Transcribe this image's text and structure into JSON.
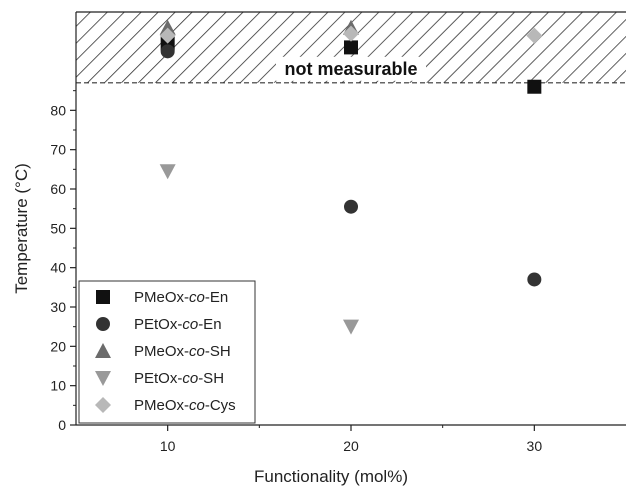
{
  "chart_data": {
    "type": "scatter",
    "xlabel": "Functionality (mol%)",
    "ylabel": "Temperature (°C)",
    "xlim": [
      5,
      35
    ],
    "ylim": [
      0,
      105
    ],
    "xticks": [
      10,
      20,
      30
    ],
    "yticks": [
      0,
      10,
      20,
      30,
      40,
      50,
      60,
      70,
      80
    ],
    "grid": false,
    "legend_position": "bottom-left",
    "annotation": "not measurable",
    "hatched_region": {
      "y_from": 87,
      "y_to": 105
    },
    "series": [
      {
        "name": "PMeOx-co-En",
        "name_main": "PMeOx-",
        "name_italic": "co",
        "name_tail": "-En",
        "marker": "square",
        "color": "#111111",
        "points": [
          {
            "x": 10,
            "y": 97
          },
          {
            "x": 20,
            "y": 96
          },
          {
            "x": 30,
            "y": 86
          }
        ]
      },
      {
        "name": "PEtOx-co-En",
        "name_main": "PEtOx-",
        "name_italic": "co",
        "name_tail": "-En",
        "marker": "circle",
        "color": "#333333",
        "points": [
          {
            "x": 10,
            "y": 95
          },
          {
            "x": 20,
            "y": 55.5
          },
          {
            "x": 30,
            "y": 37
          }
        ]
      },
      {
        "name": "PMeOx-co-SH",
        "name_main": "PMeOx-",
        "name_italic": "co",
        "name_tail": "-SH",
        "marker": "triangle-up",
        "color": "#6b6b6b",
        "points": [
          {
            "x": 10,
            "y": 101
          },
          {
            "x": 20,
            "y": 101
          }
        ]
      },
      {
        "name": "PEtOx-co-SH",
        "name_main": "PEtOx-",
        "name_italic": "co",
        "name_tail": "-SH",
        "marker": "triangle-down",
        "color": "#999999",
        "points": [
          {
            "x": 10,
            "y": 64.5
          },
          {
            "x": 20,
            "y": 25
          }
        ]
      },
      {
        "name": "PMeOx-co-Cys",
        "name_main": "PMeOx-",
        "name_italic": "co",
        "name_tail": "-Cys",
        "marker": "diamond",
        "color": "#b8b8b8",
        "points": [
          {
            "x": 10,
            "y": 99
          },
          {
            "x": 20,
            "y": 99.5
          },
          {
            "x": 30,
            "y": 99
          }
        ]
      }
    ]
  }
}
